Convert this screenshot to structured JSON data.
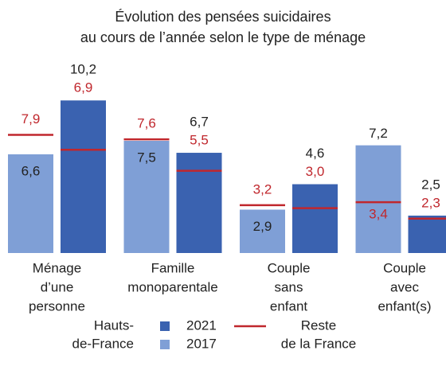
{
  "chart_data": {
    "type": "bar",
    "title": [
      "Évolution des pensées suicidaires",
      "au cours de l’année selon le type de ménage"
    ],
    "categories": [
      [
        "Ménage",
        "d’une",
        "personne"
      ],
      [
        "Famille",
        "monoparentale"
      ],
      [
        "Couple",
        "sans",
        "enfant"
      ],
      [
        "Couple",
        "avec",
        "enfant(s)"
      ]
    ],
    "legend_group": [
      "Hauts-",
      "de-France"
    ],
    "series": [
      {
        "name": "2017",
        "color": "#7f9fd6",
        "values": [
          6.6,
          7.5,
          2.9,
          7.2
        ],
        "value_labels": [
          "6,6",
          "7,5",
          "2,9",
          "7,2"
        ]
      },
      {
        "name": "2021",
        "color": "#3a62b0",
        "values": [
          10.2,
          6.7,
          4.6,
          2.5
        ],
        "value_labels": [
          "10,2",
          "6,7",
          "4,6",
          "2,5"
        ]
      }
    ],
    "reference": {
      "name": [
        "Reste",
        "de la France"
      ],
      "color": "#c0272d",
      "series": [
        {
          "values": [
            7.9,
            7.6,
            3.2,
            3.4
          ],
          "value_labels": [
            "7,9",
            "7,6",
            "3,2",
            "3,4"
          ]
        },
        {
          "values": [
            6.9,
            5.5,
            3.0,
            2.3
          ],
          "value_labels": [
            "6,9",
            "5,5",
            "3,0",
            "2,3"
          ]
        }
      ]
    }
  }
}
